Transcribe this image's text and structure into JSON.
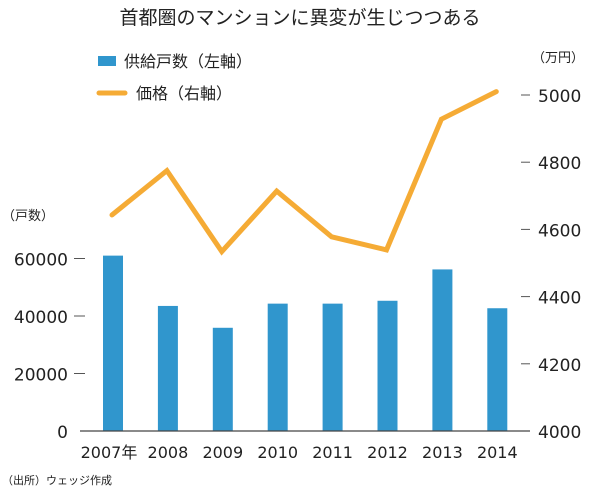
{
  "chart_data": {
    "type": "bar+line",
    "title": "首都圏のマンションに異変が生じつつある",
    "categories": [
      "2007年",
      "2008",
      "2009",
      "2010",
      "2011",
      "2012",
      "2013",
      "2014"
    ],
    "series": [
      {
        "name": "供給戸数（左軸）",
        "type": "bar",
        "axis": "left",
        "color": "#3096cd",
        "values": [
          61000,
          43500,
          35900,
          44300,
          44300,
          45300,
          56200,
          42700
        ]
      },
      {
        "name": "価格（右軸）",
        "type": "line",
        "axis": "right",
        "color": "#f5ab35",
        "values": [
          4643,
          4775,
          4534,
          4714,
          4578,
          4539,
          4928,
          5010
        ]
      }
    ],
    "left_axis": {
      "label": "（戸数）",
      "ylim": [
        0,
        70000
      ],
      "ticks": [
        0,
        20000,
        40000,
        60000
      ],
      "tick_labels": [
        "0",
        "20000",
        "40000",
        "60000"
      ]
    },
    "right_axis": {
      "label": "（万円）",
      "ylim": [
        4000,
        5050
      ],
      "ticks": [
        4000,
        4200,
        4400,
        4600,
        4800,
        5000
      ],
      "tick_labels": [
        "4000",
        "4200",
        "4400",
        "4600",
        "4800",
        "5000"
      ]
    },
    "legend_placement": "top-left",
    "grid": false,
    "source": "（出所）ウェッジ作成"
  }
}
